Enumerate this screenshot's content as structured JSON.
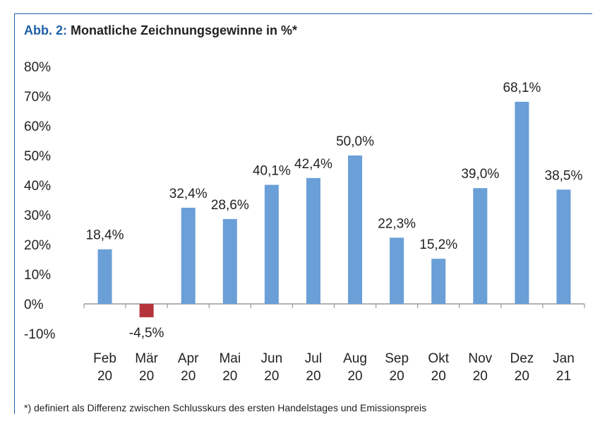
{
  "title": {
    "prefix": "Abb. 2:",
    "text": "Monatliche Zeichnungsgewinne in %*"
  },
  "footnote": "*) definiert als Differenz zwischen Schlusskurs des ersten Handelstages und Emissionspreis",
  "chart_data": {
    "type": "bar",
    "title": "Abb. 2: Monatliche Zeichnungsgewinne in %*",
    "categories": [
      "Feb 20",
      "Mär 20",
      "Apr 20",
      "Mai 20",
      "Jun 20",
      "Jul 20",
      "Aug 20",
      "Sep 20",
      "Okt 20",
      "Nov 20",
      "Dez 20",
      "Jan 21"
    ],
    "category_lines": [
      [
        "Feb",
        "20"
      ],
      [
        "Mär",
        "20"
      ],
      [
        "Apr",
        "20"
      ],
      [
        "Mai",
        "20"
      ],
      [
        "Jun",
        "20"
      ],
      [
        "Jul",
        "20"
      ],
      [
        "Aug",
        "20"
      ],
      [
        "Sep",
        "20"
      ],
      [
        "Okt",
        "20"
      ],
      [
        "Nov",
        "20"
      ],
      [
        "Dez",
        "20"
      ],
      [
        "Jan",
        "21"
      ]
    ],
    "values": [
      18.4,
      -4.5,
      32.4,
      28.6,
      40.1,
      42.4,
      50.0,
      22.3,
      15.2,
      39.0,
      68.1,
      38.5
    ],
    "data_labels": [
      "18,4%",
      "-4,5%",
      "32,4%",
      "28,6%",
      "40,1%",
      "42,4%",
      "50,0%",
      "22,3%",
      "15,2%",
      "39,0%",
      "68,1%",
      "38,5%"
    ],
    "ylim": [
      -10,
      80
    ],
    "yticks": [
      -10,
      0,
      10,
      20,
      30,
      40,
      50,
      60,
      70,
      80
    ],
    "ytick_labels": [
      "-10%",
      "0%",
      "10%",
      "20%",
      "30%",
      "40%",
      "50%",
      "60%",
      "70%",
      "80%"
    ],
    "grid": false,
    "legend": "none",
    "colors": {
      "positive": "#6a9fd8",
      "negative": "#b5333b",
      "axis": "#9a9a9a",
      "accent": "#1f5fa8"
    }
  }
}
